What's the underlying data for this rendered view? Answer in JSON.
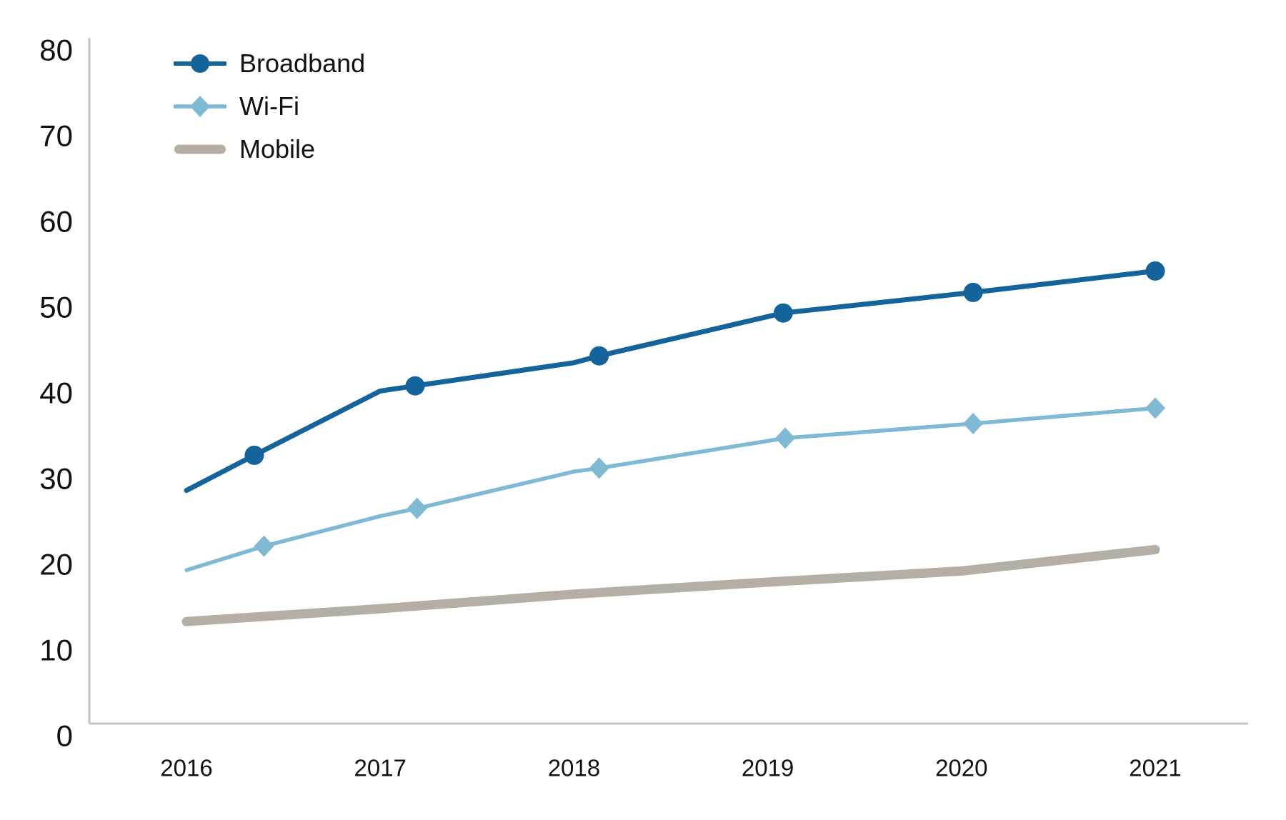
{
  "chart_data": {
    "type": "line",
    "title": "",
    "categories": [
      2016,
      2017,
      2018,
      2019,
      2020,
      2021
    ],
    "x_tick_labels": [
      "2016",
      "2017",
      "2018",
      "2019",
      "2020",
      "2021"
    ],
    "y_ticks": [
      0,
      10,
      20,
      30,
      40,
      50,
      60,
      70,
      80
    ],
    "ylim": [
      0,
      80
    ],
    "xlim_years": [
      2015.5,
      2021.48
    ],
    "grid": false,
    "legend_position": "top-left-inside",
    "axis_color": "#C8C3BC",
    "text_color": "#111111",
    "series": [
      {
        "name": "Broadband",
        "color": "#15639B",
        "marker": "circle",
        "line_width": 7,
        "points": [
          [
            2016.0,
            27.2
          ],
          [
            2016.35,
            31.3
          ],
          [
            2017.0,
            38.8
          ],
          [
            2017.18,
            39.4
          ],
          [
            2018.0,
            42.1
          ],
          [
            2018.13,
            42.9
          ],
          [
            2019.08,
            47.9
          ],
          [
            2020.06,
            50.3
          ],
          [
            2021.0,
            52.8
          ]
        ],
        "marker_points": [
          [
            2016.35,
            31.3
          ],
          [
            2017.18,
            39.4
          ],
          [
            2018.13,
            42.9
          ],
          [
            2019.08,
            47.9
          ],
          [
            2020.06,
            50.3
          ],
          [
            2021.0,
            52.8
          ]
        ],
        "values_by_year": [
          27.2,
          38.8,
          42.1,
          47.5,
          50.2,
          52.8
        ]
      },
      {
        "name": "Wi-Fi",
        "color": "#7FB9D4",
        "marker": "diamond",
        "line_width": 5.5,
        "points": [
          [
            2016.0,
            17.9
          ],
          [
            2016.4,
            20.7
          ],
          [
            2017.0,
            24.2
          ],
          [
            2017.19,
            25.1
          ],
          [
            2018.0,
            29.4
          ],
          [
            2018.13,
            29.8
          ],
          [
            2019.09,
            33.3
          ],
          [
            2020.06,
            35.0
          ],
          [
            2021.0,
            36.8
          ]
        ],
        "marker_points": [
          [
            2016.4,
            20.7
          ],
          [
            2017.19,
            25.1
          ],
          [
            2018.13,
            29.8
          ],
          [
            2019.09,
            33.3
          ],
          [
            2020.06,
            35.0
          ],
          [
            2021.0,
            36.8
          ]
        ],
        "values_by_year": [
          17.9,
          24.2,
          29.4,
          33.1,
          35.0,
          36.8
        ]
      },
      {
        "name": "Mobile",
        "color": "#B5AEA5",
        "marker": "none",
        "line_width": 13,
        "points": [
          [
            2016.0,
            11.9
          ],
          [
            2017.0,
            13.4
          ],
          [
            2018.0,
            15.1
          ],
          [
            2019.0,
            16.5
          ],
          [
            2020.0,
            17.8
          ],
          [
            2021.0,
            20.3
          ]
        ],
        "marker_points": [],
        "values_by_year": [
          11.9,
          13.4,
          15.1,
          16.5,
          17.8,
          20.3
        ]
      }
    ]
  },
  "legend": {
    "items": [
      {
        "label": "Broadband"
      },
      {
        "label": "Wi-Fi"
      },
      {
        "label": "Mobile"
      }
    ]
  }
}
